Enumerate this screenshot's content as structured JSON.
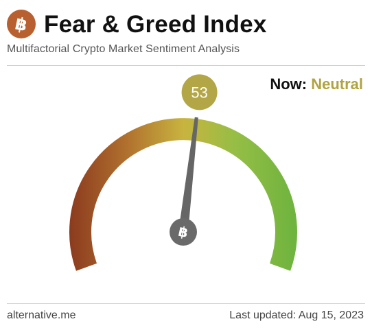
{
  "header": {
    "title": "Fear & Greed Index",
    "subtitle": "Multifactorial Crypto Market Sentiment Analysis",
    "logo_icon": "bitcoin-icon",
    "logo_color": "#b8602f"
  },
  "status": {
    "now_label": "Now:",
    "now_value": "Neutral",
    "value_color": "#b0a340"
  },
  "gauge": {
    "value": 53,
    "value_label": "53",
    "min": 0,
    "max": 100,
    "color_low": "#8b3a1e",
    "color_mid": "#c8b43f",
    "color_high": "#6cb33e",
    "needle_color": "#666666",
    "center_icon": "bitcoin-icon"
  },
  "footer": {
    "source": "alternative.me",
    "last_updated": "Last updated: Aug 15, 2023"
  }
}
